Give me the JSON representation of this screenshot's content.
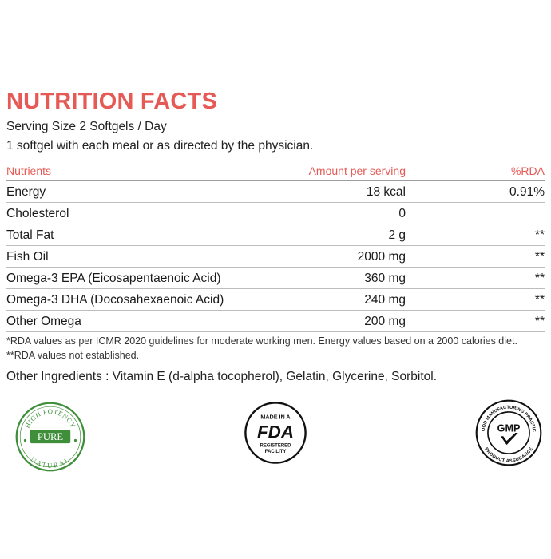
{
  "title": "NUTRITION FACTS",
  "serving_size": "Serving Size 2 Softgels / Day",
  "directions": "1 softgel with each meal or as directed by the physician.",
  "table": {
    "headers": {
      "nutrient": "Nutrients",
      "amount": "Amount per serving",
      "rda": "%RDA"
    },
    "rows": [
      {
        "nutrient": "Energy",
        "amount": "18 kcal",
        "rda": "0.91%"
      },
      {
        "nutrient": "Cholesterol",
        "amount": "0",
        "rda": ""
      },
      {
        "nutrient": "Total Fat",
        "amount": "2 g",
        "rda": "**"
      },
      {
        "nutrient": "Fish Oil",
        "amount": "2000 mg",
        "rda": "**"
      },
      {
        "nutrient": "Omega-3 EPA (Eicosapentaenoic Acid)",
        "amount": "360 mg",
        "rda": "**"
      },
      {
        "nutrient": "Omega-3 DHA (Docosahexaenoic Acid)",
        "amount": "240 mg",
        "rda": "**"
      },
      {
        "nutrient": "Other Omega",
        "amount": "200 mg",
        "rda": "**"
      }
    ]
  },
  "footnotes": {
    "rda_note": "*RDA values as per ICMR 2020 guidelines for moderate working men. Energy values based on a 2000 calories diet.",
    "not_established": "**RDA values not established."
  },
  "other_ingredients": "Other Ingredients : Vitamin E (d-alpha tocopherol), Gelatin, Glycerine, Sorbitol.",
  "badges": {
    "pure": {
      "top_text": "HIGH POTENCY",
      "center_text": "PURE",
      "bottom_text": "NATURAL",
      "color": "#3f8f3a"
    },
    "fda": {
      "top_text": "MADE IN A",
      "logo_text": "FDA",
      "bottom_line1": "REGISTERED",
      "bottom_line2": "FACILITY"
    },
    "gmp": {
      "top_text": "GOOD MANUFACTURING PRACTICE",
      "center_text": "GMP",
      "bottom_text": "PRODUCT ASSURANCE"
    }
  },
  "colors": {
    "accent": "#e65a55",
    "text": "#1a1a1a",
    "rule": "#bdbdbd"
  }
}
